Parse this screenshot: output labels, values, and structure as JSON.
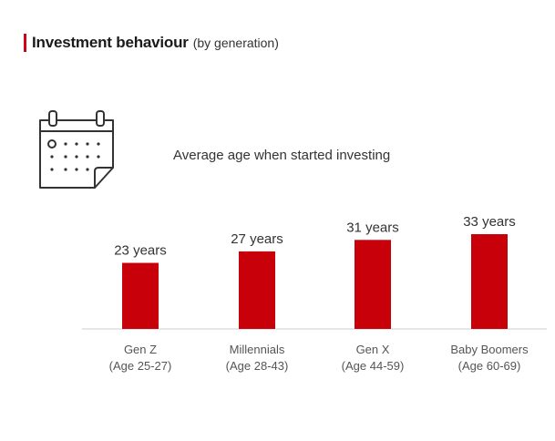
{
  "header": {
    "title": "Investment behaviour",
    "subtitle": "(by generation)"
  },
  "icon": {
    "name": "calendar-icon"
  },
  "chart_data": {
    "type": "bar",
    "title": "Average age when started investing",
    "categories": [
      "Gen Z",
      "Millennials",
      "Gen X",
      "Baby Boomers"
    ],
    "category_sublabels": [
      "(Age 25-27)",
      "(Age 28-43)",
      "(Age 44-59)",
      "(Age 60-69)"
    ],
    "values": [
      23,
      27,
      31,
      33
    ],
    "data_labels": [
      "23 years",
      "27 years",
      "31 years",
      "33 years"
    ],
    "xlabel": "",
    "ylabel": "",
    "ylim": [
      0,
      33
    ],
    "grid": false,
    "legend": "none",
    "colors": {
      "bar": "#c8000a",
      "axis": "#cccccc",
      "text": "#555555"
    }
  }
}
